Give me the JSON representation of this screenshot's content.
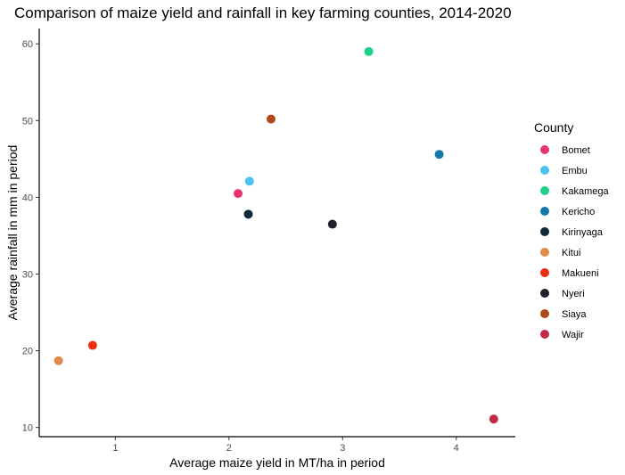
{
  "chart_data": {
    "type": "scatter",
    "title": "Comparison of maize yield and rainfall in key farming counties, 2014-2020",
    "xlabel": "Average maize yield in MT/ha in period",
    "ylabel": "Average rainfall in mm in period",
    "xlim": [
      0.33,
      4.52
    ],
    "ylim": [
      8.8,
      62.0
    ],
    "xticks": [
      1,
      2,
      3,
      4
    ],
    "yticks": [
      10,
      20,
      30,
      40,
      50,
      60
    ],
    "grid": false,
    "legend_title": "County",
    "legend_position": "right",
    "series": [
      {
        "name": "Bomet",
        "color": "#E8336D",
        "x": 2.08,
        "y": 40.5
      },
      {
        "name": "Embu",
        "color": "#4CC3F0",
        "x": 2.18,
        "y": 42.1
      },
      {
        "name": "Kakamega",
        "color": "#1FD28A",
        "x": 3.23,
        "y": 59.0
      },
      {
        "name": "Kericho",
        "color": "#1578A8",
        "x": 3.85,
        "y": 45.6
      },
      {
        "name": "Kirinyaga",
        "color": "#0F2A3A",
        "x": 2.17,
        "y": 37.8
      },
      {
        "name": "Kitui",
        "color": "#E08A4C",
        "x": 0.5,
        "y": 18.7
      },
      {
        "name": "Makueni",
        "color": "#EC2D0F",
        "x": 0.8,
        "y": 20.7
      },
      {
        "name": "Nyeri",
        "color": "#1F222B",
        "x": 2.91,
        "y": 36.5
      },
      {
        "name": "Siaya",
        "color": "#B0471D",
        "x": 2.37,
        "y": 50.2
      },
      {
        "name": "Wajir",
        "color": "#C22946",
        "x": 4.33,
        "y": 11.1
      }
    ]
  }
}
